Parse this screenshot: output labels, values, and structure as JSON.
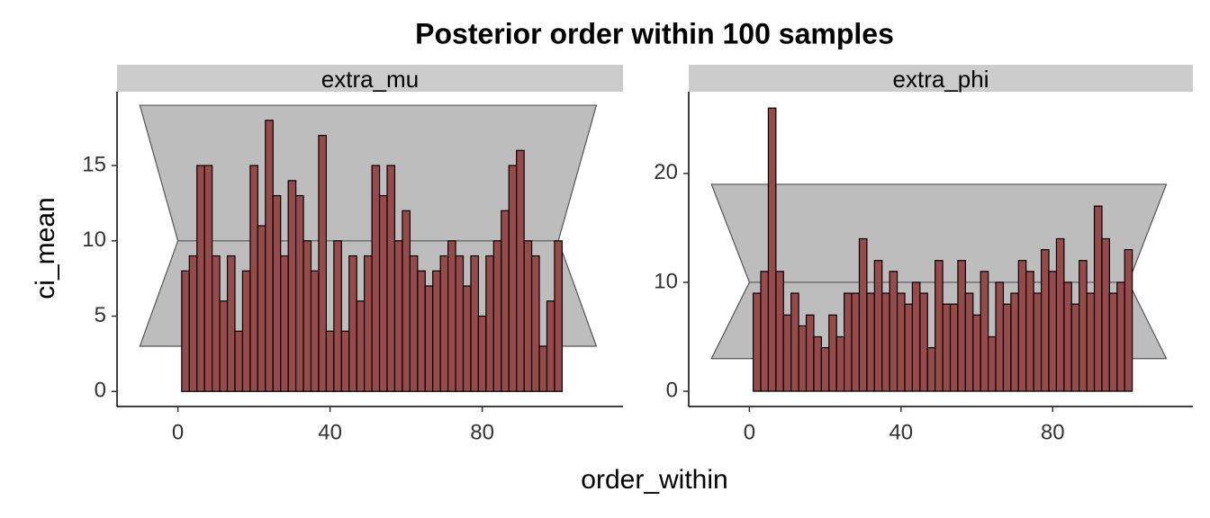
{
  "title": "Posterior order within 100 samples",
  "x_label": "order_within",
  "y_label": "ci_mean",
  "chart_data": [
    {
      "type": "histogram",
      "facet": "extra_mu",
      "color": "#974a4a",
      "bins": [
        1,
        3,
        5,
        7,
        9,
        11,
        13,
        15,
        17,
        19,
        21,
        23,
        25,
        27,
        29,
        31,
        33,
        35,
        37,
        39,
        41,
        43,
        45,
        47,
        49,
        51,
        53,
        55,
        57,
        59,
        61,
        63,
        65,
        67,
        69,
        71,
        73,
        75,
        77,
        79,
        81,
        83,
        85,
        87,
        89,
        91,
        93,
        95,
        97,
        99,
        101
      ],
      "values": [
        8,
        9,
        15,
        15,
        9,
        6,
        9,
        4,
        8,
        15,
        11,
        18,
        13,
        9,
        14,
        13,
        10,
        8,
        17,
        4,
        10,
        4,
        9,
        6,
        9,
        15,
        13,
        15,
        10,
        12,
        9,
        8,
        7,
        8,
        9,
        10,
        9,
        7,
        9,
        5,
        9,
        10,
        12,
        15,
        16,
        10,
        9,
        3,
        6,
        10
      ],
      "band": {
        "x": [
          -10,
          0,
          100,
          110
        ],
        "upper": 19,
        "mid": 10,
        "lower": 3,
        "color": "#bdbdbd"
      },
      "xlim": [
        -16,
        117
      ],
      "xticks": [
        0,
        40,
        80
      ],
      "ylim": [
        -1,
        19.9
      ],
      "yticks": [
        0,
        5,
        10,
        15
      ]
    },
    {
      "type": "histogram",
      "facet": "extra_phi",
      "color": "#974a4a",
      "bins": [
        1,
        3,
        5,
        7,
        9,
        11,
        13,
        15,
        17,
        19,
        21,
        23,
        25,
        27,
        29,
        31,
        33,
        35,
        37,
        39,
        41,
        43,
        45,
        47,
        49,
        51,
        53,
        55,
        57,
        59,
        61,
        63,
        65,
        67,
        69,
        71,
        73,
        75,
        77,
        79,
        81,
        83,
        85,
        87,
        89,
        91,
        93,
        95,
        97,
        99,
        101
      ],
      "values": [
        9,
        11,
        26,
        11,
        7,
        9,
        6,
        7,
        5,
        4,
        7,
        5,
        9,
        9,
        14,
        9,
        12,
        9,
        11,
        9,
        8,
        10,
        9,
        4,
        12,
        8,
        8,
        12,
        9,
        7,
        11,
        5,
        10,
        8,
        9,
        12,
        11,
        9,
        13,
        11,
        14,
        10,
        8,
        12,
        9,
        17,
        14,
        9,
        10,
        13
      ],
      "band": {
        "x": [
          -10,
          0,
          100,
          110
        ],
        "upper": 19,
        "mid": 10,
        "lower": 3,
        "color": "#bdbdbd"
      },
      "xlim": [
        -16,
        117
      ],
      "xticks": [
        0,
        40,
        80
      ],
      "ylim": [
        -1.4,
        27.5
      ],
      "yticks": [
        0,
        10,
        20
      ]
    }
  ]
}
